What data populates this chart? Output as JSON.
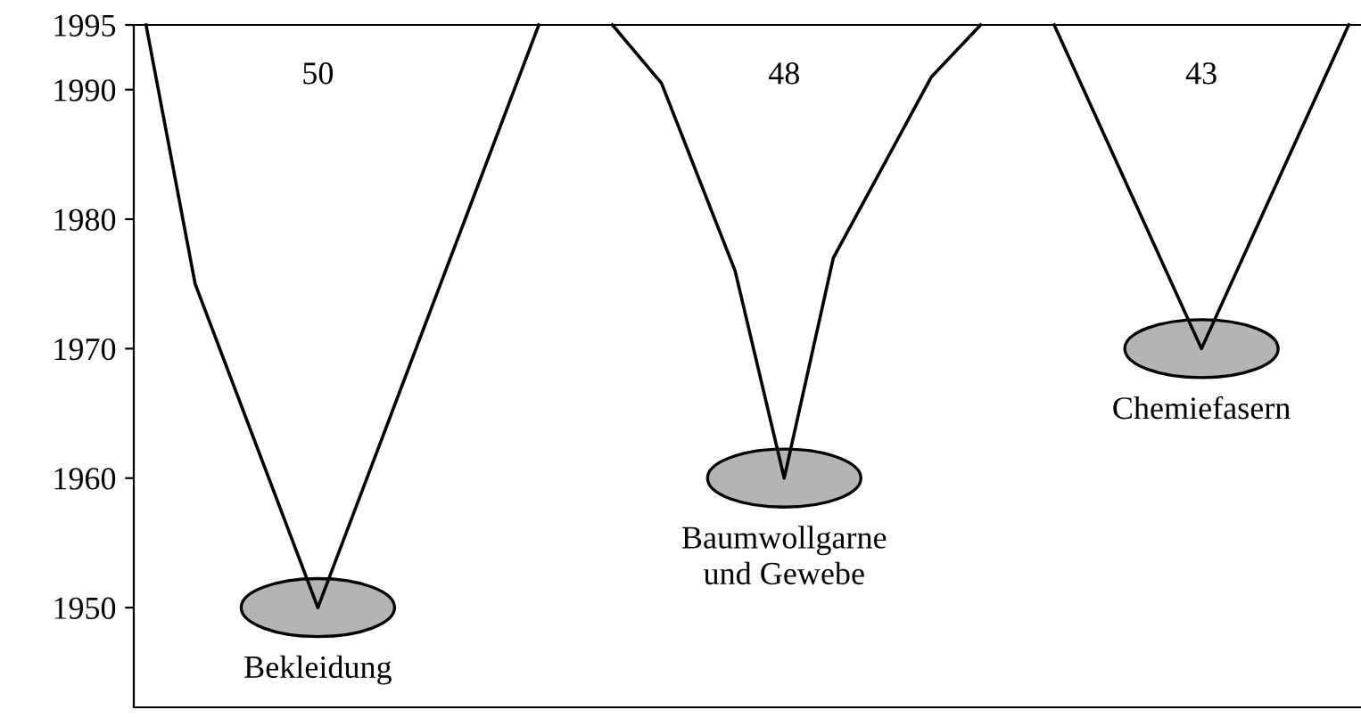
{
  "chart_data": {
    "type": "line",
    "categories": [
      null,
      null,
      null,
      null,
      null,
      null,
      null,
      null,
      null,
      null,
      null,
      null,
      null,
      null,
      null,
      null,
      null,
      null,
      null,
      null,
      null,
      null,
      null,
      null,
      null,
      null,
      null,
      null,
      null,
      null,
      null,
      null,
      null,
      null,
      null,
      null,
      null,
      null,
      null,
      null,
      null,
      null,
      null,
      null,
      null,
      null,
      null,
      null,
      null,
      null
    ],
    "series": [
      {
        "color": "#000000",
        "values": [
          1995,
          null,
          1975,
          null,
          null,
          1960,
          null,
          1950,
          null,
          1960,
          null,
          null,
          1975,
          null,
          null,
          null,
          1995,
          null,
          null,
          null,
          null,
          null,
          null,
          null,
          null,
          null,
          null,
          null,
          null,
          null,
          null,
          null,
          null,
          null,
          null,
          null,
          null,
          null,
          null,
          null,
          null,
          null,
          null,
          null,
          null,
          null,
          null,
          null,
          null,
          null
        ]
      },
      {
        "color": "#000000",
        "values": [
          null,
          null,
          null,
          null,
          null,
          null,
          null,
          null,
          null,
          null,
          null,
          null,
          null,
          null,
          null,
          null,
          null,
          null,
          null,
          1995,
          null,
          1990.5,
          null,
          null,
          1976,
          null,
          1960,
          null,
          1977,
          null,
          null,
          null,
          1991,
          null,
          1995,
          null,
          null,
          null,
          null,
          null,
          null,
          null,
          null,
          null,
          null,
          null,
          null,
          null,
          null,
          null
        ]
      },
      {
        "color": "#000000",
        "values": [
          null,
          null,
          null,
          null,
          null,
          null,
          null,
          null,
          null,
          null,
          null,
          null,
          null,
          null,
          null,
          null,
          null,
          null,
          null,
          null,
          null,
          null,
          null,
          null,
          null,
          null,
          null,
          null,
          null,
          null,
          null,
          null,
          null,
          null,
          null,
          null,
          null,
          1995,
          null,
          null,
          null,
          null,
          null,
          1970,
          null,
          null,
          null,
          null,
          null,
          1995
        ]
      }
    ],
    "ylim": [
      1942.3,
      1995
    ],
    "yticks": [
      1950,
      1960,
      1970,
      1980,
      1990,
      1995
    ],
    "tick_labels": "y",
    "grid": false,
    "legend": false,
    "marker": "none",
    "line_style": "solid",
    "annotations": [
      "50",
      "48",
      "43",
      "Bekleidung",
      "Baumwollgarne\nund Gewebe",
      "Chemiefasern"
    ]
  }
}
